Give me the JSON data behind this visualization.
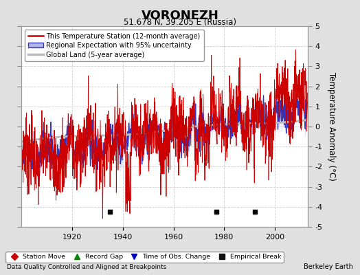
{
  "title": "VORONEZH",
  "subtitle": "51.678 N, 39.205 E (Russia)",
  "ylabel": "Temperature Anomaly (°C)",
  "xlabel_note": "Data Quality Controlled and Aligned at Breakpoints",
  "credit": "Berkeley Earth",
  "ylim": [
    -5,
    5
  ],
  "xlim": [
    1900,
    2013
  ],
  "yticks": [
    -5,
    -4,
    -3,
    -2,
    -1,
    0,
    1,
    2,
    3,
    4,
    5
  ],
  "xticks": [
    1920,
    1940,
    1960,
    1980,
    2000
  ],
  "fig_bg_color": "#e0e0e0",
  "plot_bg_color": "#ffffff",
  "grid_color": "#cccccc",
  "station_color": "#cc0000",
  "regional_color": "#3333bb",
  "regional_fill_color": "#b0b8e8",
  "global_color": "#bbbbbb",
  "empirical_break_years": [
    1935,
    1977,
    1992
  ],
  "legend_items": [
    {
      "label": "This Temperature Station (12-month average)",
      "color": "#cc0000",
      "lw": 1.5
    },
    {
      "label": "Regional Expectation with 95% uncertainty",
      "color": "#3333bb",
      "lw": 1.5
    },
    {
      "label": "Global Land (5-year average)",
      "color": "#bbbbbb",
      "lw": 2.5
    }
  ],
  "bottom_legend": [
    {
      "label": "Station Move",
      "color": "#cc0000",
      "marker": "D"
    },
    {
      "label": "Record Gap",
      "color": "#008800",
      "marker": "^"
    },
    {
      "label": "Time of Obs. Change",
      "color": "#0000cc",
      "marker": "v"
    },
    {
      "label": "Empirical Break",
      "color": "#111111",
      "marker": "s"
    }
  ]
}
